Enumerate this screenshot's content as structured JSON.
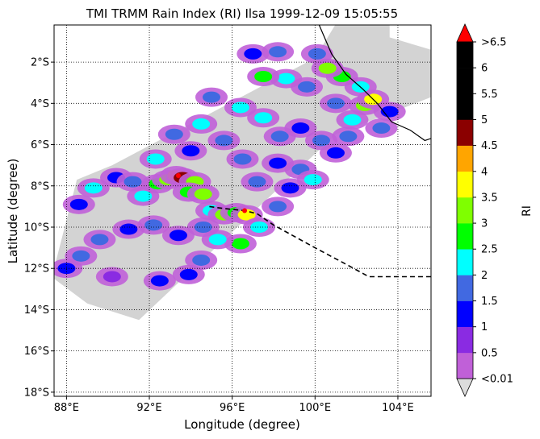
{
  "chart_data": {
    "type": "heatmap",
    "title": "TMI TRMM Rain Index (RI) Ilsa 1999-12-09 15:05:55",
    "xlabel": "Longitude (degree)",
    "ylabel": "Latitude (degree)",
    "xlim": [
      87.4,
      105.6
    ],
    "ylim": [
      -18.2,
      -0.2
    ],
    "grid": true,
    "x_ticks": [
      {
        "value": 88,
        "label": "88°E"
      },
      {
        "value": 92,
        "label": "92°E"
      },
      {
        "value": 96,
        "label": "96°E"
      },
      {
        "value": 100,
        "label": "100°E"
      },
      {
        "value": 104,
        "label": "104°E"
      }
    ],
    "y_ticks": [
      {
        "value": -2,
        "label": "2°S"
      },
      {
        "value": -4,
        "label": "4°S"
      },
      {
        "value": -6,
        "label": "6°S"
      },
      {
        "value": -8,
        "label": "8°S"
      },
      {
        "value": -10,
        "label": "10°S"
      },
      {
        "value": -12,
        "label": "12°S"
      },
      {
        "value": -14,
        "label": "14°S"
      },
      {
        "value": -16,
        "label": "16°S"
      },
      {
        "value": -18,
        "label": "18°S"
      }
    ],
    "colorbar": {
      "label": "RI",
      "tick_labels": [
        "<0.01",
        "0.5",
        "1",
        "1.5",
        "2",
        "2.5",
        "3",
        "3.5",
        "4",
        "4.5",
        "5",
        "5.5",
        "6",
        ">6.5"
      ],
      "colors": [
        "#c060d8",
        "#8a2be2",
        "#0000ff",
        "#4169e1",
        "#00ffff",
        "#00ff00",
        "#7fff00",
        "#ffff00",
        "#ffa500",
        "#8b0000",
        "#000000",
        "#000000",
        "#000000"
      ],
      "under_color": "#dcdcdc",
      "over_color": "#ff0000"
    },
    "no_rain_color": "#d3d3d3",
    "swath_polygon": [
      [
        87.4,
        -12.0
      ],
      [
        88.5,
        -7.7
      ],
      [
        90.2,
        -7.0
      ],
      [
        100.0,
        -1.8
      ],
      [
        101.4,
        0.5
      ],
      [
        103.6,
        0.4
      ],
      [
        103.6,
        -0.8
      ],
      [
        105.6,
        -1.4
      ],
      [
        105.6,
        -3.7
      ],
      [
        101.0,
        -5.5
      ],
      [
        91.5,
        -14.5
      ],
      [
        89.0,
        -13.7
      ],
      [
        87.4,
        -12.5
      ]
    ],
    "rain_cells": [
      {
        "lon": 88.6,
        "lat": -8.9,
        "ri": 1
      },
      {
        "lon": 89.3,
        "lat": -8.1,
        "ri": 2
      },
      {
        "lon": 90.4,
        "lat": -7.6,
        "ri": 1
      },
      {
        "lon": 91.2,
        "lat": -7.8,
        "ri": 1.5
      },
      {
        "lon": 91.7,
        "lat": -8.5,
        "ri": 2
      },
      {
        "lon": 92.4,
        "lat": -7.9,
        "ri": 2.5
      },
      {
        "lon": 92.9,
        "lat": -7.7,
        "ri": 3
      },
      {
        "lon": 93.3,
        "lat": -7.5,
        "ri": 4
      },
      {
        "lon": 93.6,
        "lat": -7.6,
        "ri": 4.5
      },
      {
        "lon": 94.2,
        "lat": -7.8,
        "ri": 3
      },
      {
        "lon": 93.9,
        "lat": -8.3,
        "ri": 2.5
      },
      {
        "lon": 94.6,
        "lat": -8.4,
        "ri": 3
      },
      {
        "lon": 95.0,
        "lat": -9.2,
        "ri": 2
      },
      {
        "lon": 95.6,
        "lat": -9.4,
        "ri": 3
      },
      {
        "lon": 96.2,
        "lat": -9.3,
        "ri": 2.5
      },
      {
        "lon": 96.7,
        "lat": -9.4,
        "ri": 3.5
      },
      {
        "lon": 97.3,
        "lat": -10.0,
        "ri": 2
      },
      {
        "lon": 96.4,
        "lat": -10.8,
        "ri": 2.5
      },
      {
        "lon": 95.3,
        "lat": -10.6,
        "ri": 2
      },
      {
        "lon": 94.6,
        "lat": -10.0,
        "ri": 1.5
      },
      {
        "lon": 93.4,
        "lat": -10.4,
        "ri": 1
      },
      {
        "lon": 92.2,
        "lat": -9.9,
        "ri": 1.5
      },
      {
        "lon": 91.0,
        "lat": -10.1,
        "ri": 1
      },
      {
        "lon": 89.6,
        "lat": -10.6,
        "ri": 1.5
      },
      {
        "lon": 88.7,
        "lat": -11.4,
        "ri": 1.5
      },
      {
        "lon": 88.0,
        "lat": -12.0,
        "ri": 1
      },
      {
        "lon": 90.2,
        "lat": -12.4,
        "ri": 0.5
      },
      {
        "lon": 92.5,
        "lat": -12.6,
        "ri": 1
      },
      {
        "lon": 93.9,
        "lat": -12.3,
        "ri": 1
      },
      {
        "lon": 94.5,
        "lat": -11.6,
        "ri": 1.5
      },
      {
        "lon": 98.2,
        "lat": -9.0,
        "ri": 1.5
      },
      {
        "lon": 98.8,
        "lat": -8.1,
        "ri": 1
      },
      {
        "lon": 99.3,
        "lat": -7.2,
        "ri": 1.5
      },
      {
        "lon": 99.9,
        "lat": -7.7,
        "ri": 2
      },
      {
        "lon": 98.2,
        "lat": -6.9,
        "ri": 1
      },
      {
        "lon": 97.2,
        "lat": -7.8,
        "ri": 1.5
      },
      {
        "lon": 96.5,
        "lat": -6.7,
        "ri": 1.5
      },
      {
        "lon": 95.6,
        "lat": -5.8,
        "ri": 1.5
      },
      {
        "lon": 94.5,
        "lat": -5.0,
        "ri": 2
      },
      {
        "lon": 93.2,
        "lat": -5.5,
        "ri": 1.5
      },
      {
        "lon": 95.0,
        "lat": -3.7,
        "ri": 1.5
      },
      {
        "lon": 96.4,
        "lat": -4.2,
        "ri": 2
      },
      {
        "lon": 97.5,
        "lat": -4.7,
        "ri": 2
      },
      {
        "lon": 98.3,
        "lat": -5.6,
        "ri": 1.5
      },
      {
        "lon": 99.3,
        "lat": -5.2,
        "ri": 1
      },
      {
        "lon": 100.3,
        "lat": -5.8,
        "ri": 1.5
      },
      {
        "lon": 101.0,
        "lat": -6.4,
        "ri": 1
      },
      {
        "lon": 101.6,
        "lat": -5.6,
        "ri": 1.5
      },
      {
        "lon": 101.8,
        "lat": -4.8,
        "ri": 2
      },
      {
        "lon": 101.0,
        "lat": -4.0,
        "ri": 1.5
      },
      {
        "lon": 102.4,
        "lat": -4.1,
        "ri": 3
      },
      {
        "lon": 102.8,
        "lat": -3.8,
        "ri": 3.5
      },
      {
        "lon": 102.2,
        "lat": -3.2,
        "ri": 2
      },
      {
        "lon": 101.3,
        "lat": -2.7,
        "ri": 2.5
      },
      {
        "lon": 100.6,
        "lat": -2.3,
        "ri": 3
      },
      {
        "lon": 100.1,
        "lat": -1.6,
        "ri": 1.5
      },
      {
        "lon": 99.6,
        "lat": -3.2,
        "ri": 1.5
      },
      {
        "lon": 98.6,
        "lat": -2.8,
        "ri": 2
      },
      {
        "lon": 97.0,
        "lat": -1.6,
        "ri": 1
      },
      {
        "lon": 97.5,
        "lat": -2.7,
        "ri": 2.5
      },
      {
        "lon": 98.2,
        "lat": -1.5,
        "ri": 1.5
      },
      {
        "lon": 103.6,
        "lat": -4.4,
        "ri": 1
      },
      {
        "lon": 103.2,
        "lat": -5.2,
        "ri": 1.5
      },
      {
        "lon": 94.0,
        "lat": -6.3,
        "ri": 1
      },
      {
        "lon": 92.3,
        "lat": -6.7,
        "ri": 2
      }
    ],
    "storm_track": [
      [
        94.9,
        -9.0
      ],
      [
        95.6,
        -9.1
      ],
      [
        96.6,
        -9.2
      ],
      [
        97.2,
        -9.35
      ],
      [
        98.0,
        -9.9
      ],
      [
        100.0,
        -11.0
      ],
      [
        101.5,
        -11.8
      ],
      [
        102.6,
        -12.4
      ],
      [
        103.5,
        -12.4
      ],
      [
        105.6,
        -12.4
      ]
    ],
    "storm_markers": [
      [
        93.4,
        -7.5
      ],
      [
        96.6,
        -9.2
      ]
    ],
    "coastline": [
      [
        100.2,
        -0.2
      ],
      [
        100.8,
        -1.6
      ],
      [
        101.5,
        -2.6
      ],
      [
        102.3,
        -3.3
      ],
      [
        103.0,
        -4.0
      ],
      [
        103.7,
        -4.9
      ],
      [
        104.6,
        -5.3
      ],
      [
        105.3,
        -5.8
      ],
      [
        105.6,
        -5.7
      ]
    ]
  }
}
